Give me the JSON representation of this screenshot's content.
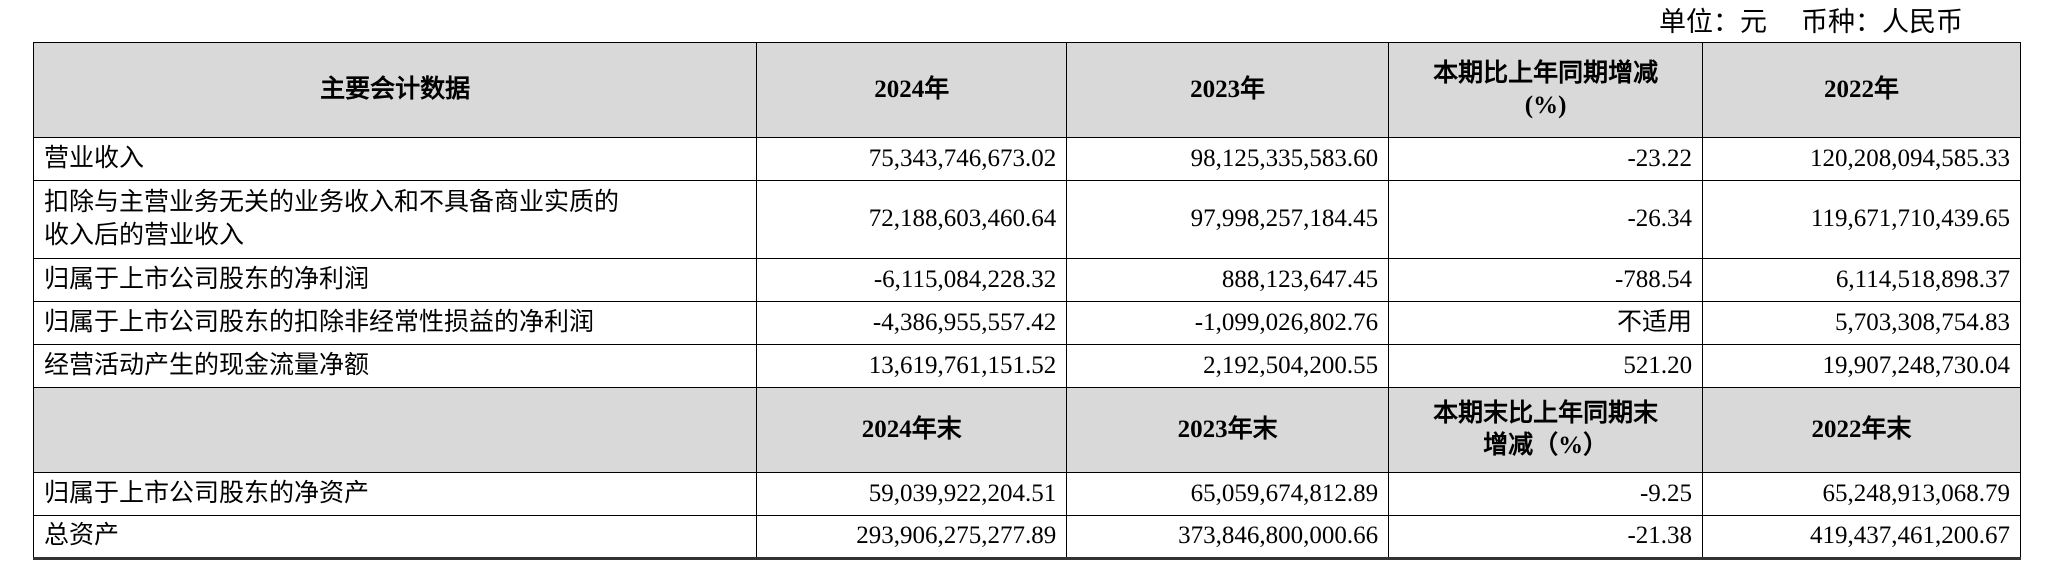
{
  "meta": {
    "unit_label": "单位：元",
    "currency_label": "币种：人民币"
  },
  "table": {
    "annual_headers": {
      "metric": "主要会计数据",
      "y2024": "2024年",
      "y2023": "2023年",
      "change": "本期比上年同期增减\n(%)",
      "y2022": "2022年"
    },
    "annual_rows": [
      {
        "label": "营业收入",
        "y2024": "75,343,746,673.02",
        "y2023": "98,125,335,583.60",
        "change": "-23.22",
        "y2022": "120,208,094,585.33"
      },
      {
        "label": "扣除与主营业务无关的业务收入和不具备商业实质的\n收入后的营业收入",
        "y2024": "72,188,603,460.64",
        "y2023": "97,998,257,184.45",
        "change": "-26.34",
        "y2022": "119,671,710,439.65"
      },
      {
        "label": "归属于上市公司股东的净利润",
        "y2024": "-6,115,084,228.32",
        "y2023": "888,123,647.45",
        "change": "-788.54",
        "y2022": "6,114,518,898.37"
      },
      {
        "label": "归属于上市公司股东的扣除非经常性损益的净利润",
        "y2024": "-4,386,955,557.42",
        "y2023": "-1,099,026,802.76",
        "change": "不适用",
        "y2022": "5,703,308,754.83"
      },
      {
        "label": "经营活动产生的现金流量净额",
        "y2024": "13,619,761,151.52",
        "y2023": "2,192,504,200.55",
        "change": "521.20",
        "y2022": "19,907,248,730.04"
      }
    ],
    "period_end_headers": {
      "metric": "",
      "y2024": "2024年末",
      "y2023": "2023年末",
      "change": "本期末比上年同期末\n增减（%）",
      "y2022": "2022年末"
    },
    "period_end_rows": [
      {
        "label": "归属于上市公司股东的净资产",
        "y2024": "59,039,922,204.51",
        "y2023": "65,059,674,812.89",
        "change": "-9.25",
        "y2022": "65,248,913,068.79"
      },
      {
        "label": "总资产",
        "y2024": "293,906,275,277.89",
        "y2023": "373,846,800,000.66",
        "change": "-21.38",
        "y2022": "419,437,461,200.67"
      }
    ]
  }
}
